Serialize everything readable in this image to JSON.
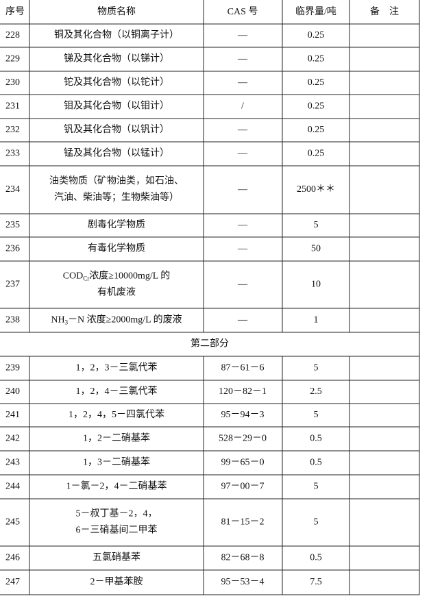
{
  "table": {
    "header": [
      "序号",
      "物质名称",
      "CAS 号",
      "临界量/吨",
      "备　注"
    ],
    "rows": [
      {
        "no": "228",
        "name": [
          "铜及其化合物（以铜离子计）"
        ],
        "cas": "—",
        "threshold": "0.25"
      },
      {
        "no": "229",
        "name": [
          "锑及其化合物（以锑计）"
        ],
        "cas": "—",
        "threshold": "0.25"
      },
      {
        "no": "230",
        "name": [
          "铊及其化合物（以铊计）"
        ],
        "cas": "—",
        "threshold": "0.25"
      },
      {
        "no": "231",
        "name": [
          "钼及其化合物（以钼计）"
        ],
        "cas": "/",
        "threshold": "0.25"
      },
      {
        "no": "232",
        "name": [
          "钒及其化合物（以钒计）"
        ],
        "cas": "—",
        "threshold": "0.25"
      },
      {
        "no": "233",
        "name": [
          "锰及其化合物（以锰计）"
        ],
        "cas": "—",
        "threshold": "0.25"
      },
      {
        "no": "234",
        "name": [
          "油类物质（矿物油类，如石油、",
          "汽油、柴油等；生物柴油等）"
        ],
        "cas": "—",
        "threshold": "2500＊＊"
      },
      {
        "no": "235",
        "name": [
          "剧毒化学物质"
        ],
        "cas": "—",
        "threshold": "5"
      },
      {
        "no": "236",
        "name": [
          "有毒化学物质"
        ],
        "cas": "—",
        "threshold": "50"
      },
      {
        "no": "237",
        "name": [
          {
            "base": "COD",
            "sub": "Cr",
            "after": "浓度≥10000mg/L 的"
          },
          "有机废液"
        ],
        "cas": "—",
        "threshold": "10"
      },
      {
        "no": "238",
        "name": [
          {
            "base": "NH",
            "sub": "3",
            "after": "－N 浓度≥2000mg/L 的废液"
          }
        ],
        "cas": "—",
        "threshold": "1"
      },
      {
        "section": "第二部分"
      },
      {
        "no": "239",
        "name": [
          "1，2，3－三氯代苯"
        ],
        "cas": "87－61－6",
        "threshold": "5"
      },
      {
        "no": "240",
        "name": [
          "1，2，4－三氯代苯"
        ],
        "cas": "120－82－1",
        "threshold": "2.5"
      },
      {
        "no": "241",
        "name": [
          "1，2，4，5－四氯代苯"
        ],
        "cas": "95－94－3",
        "threshold": "5"
      },
      {
        "no": "242",
        "name": [
          "1，2－二硝基苯"
        ],
        "cas": "528－29－0",
        "threshold": "0.5"
      },
      {
        "no": "243",
        "name": [
          "1，3－二硝基苯"
        ],
        "cas": "99－65－0",
        "threshold": "0.5"
      },
      {
        "no": "244",
        "name": [
          "1－氯－2，4－二硝基苯"
        ],
        "cas": "97－00－7",
        "threshold": "5"
      },
      {
        "no": "245",
        "name": [
          "5－叔丁基－2，4，",
          "6－三硝基间二甲苯"
        ],
        "cas": "81－15－2",
        "threshold": "5"
      },
      {
        "no": "246",
        "name": [
          "五氯硝基苯"
        ],
        "cas": "82－68－8",
        "threshold": "0.5"
      },
      {
        "no": "247",
        "name": [
          "2－甲基苯胺"
        ],
        "cas": "95－53－4",
        "threshold": "7.5"
      }
    ]
  }
}
